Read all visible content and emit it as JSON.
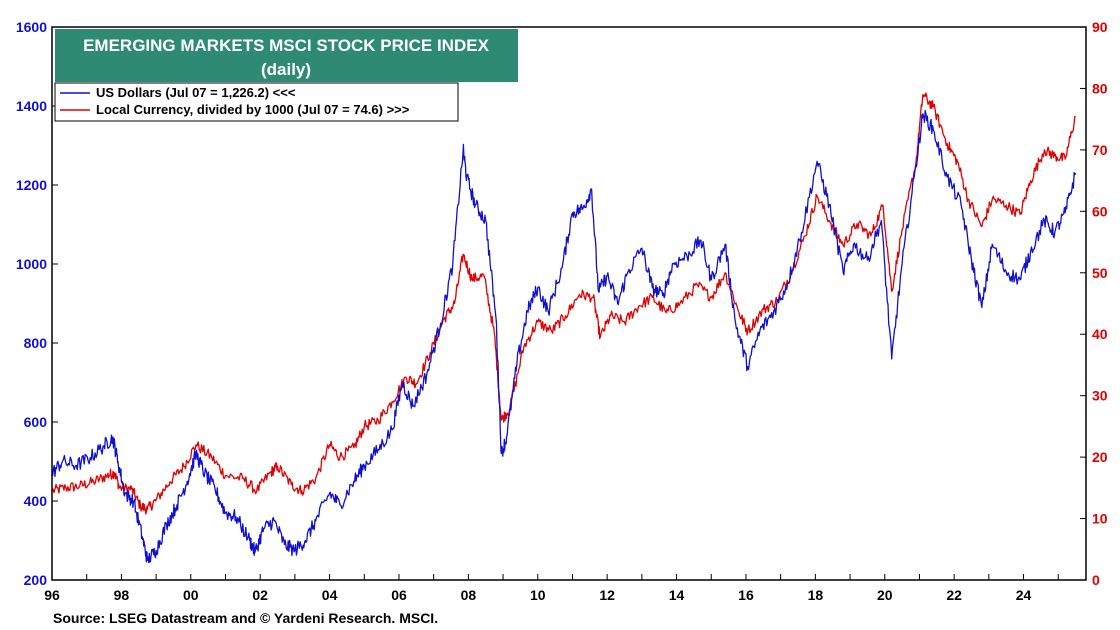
{
  "chart_data": {
    "type": "line",
    "title": "EMERGING MARKETS MSCI STOCK PRICE INDEX",
    "subtitle": "(daily)",
    "source": "Source: LSEG Datastream and © Yardeni Research. MSCI.",
    "x_axis": {
      "ticks": [
        "96",
        "98",
        "00",
        "02",
        "04",
        "06",
        "08",
        "10",
        "12",
        "14",
        "16",
        "18",
        "20",
        "22",
        "24"
      ],
      "tick_years": [
        1996,
        1998,
        2000,
        2002,
        2004,
        2006,
        2008,
        2010,
        2012,
        2014,
        2016,
        2018,
        2020,
        2022,
        2024
      ],
      "range": [
        1996.0,
        2025.8
      ]
    },
    "y_left": {
      "ylim": [
        200,
        1600
      ],
      "ticks": [
        "200",
        "400",
        "600",
        "800",
        "1000",
        "1200",
        "1400",
        "1600"
      ],
      "color": "#1010d0"
    },
    "y_right": {
      "ylim": [
        0,
        90
      ],
      "ticks": [
        "0",
        "10",
        "20",
        "30",
        "40",
        "50",
        "60",
        "70",
        "80",
        "90"
      ],
      "color": "#e00000"
    },
    "grid": false,
    "legend_position": "top-left",
    "series": [
      {
        "name": "US Dollars (Jul 07 = 1,226.2) <<<",
        "axis": "left",
        "color": "#1010d0",
        "points": [
          [
            1996.0,
            470
          ],
          [
            1996.3,
            500
          ],
          [
            1996.7,
            490
          ],
          [
            1997.1,
            510
          ],
          [
            1997.5,
            540
          ],
          [
            1997.75,
            560
          ],
          [
            1997.9,
            500
          ],
          [
            1998.1,
            420
          ],
          [
            1998.35,
            400
          ],
          [
            1998.6,
            310
          ],
          [
            1998.75,
            250
          ],
          [
            1999.0,
            275
          ],
          [
            1999.3,
            340
          ],
          [
            1999.6,
            390
          ],
          [
            1999.9,
            450
          ],
          [
            2000.15,
            520
          ],
          [
            2000.4,
            470
          ],
          [
            2000.7,
            430
          ],
          [
            2001.0,
            370
          ],
          [
            2001.3,
            360
          ],
          [
            2001.7,
            300
          ],
          [
            2001.85,
            270
          ],
          [
            2002.1,
            330
          ],
          [
            2002.4,
            350
          ],
          [
            2002.7,
            290
          ],
          [
            2003.0,
            275
          ],
          [
            2003.3,
            300
          ],
          [
            2003.6,
            350
          ],
          [
            2004.0,
            420
          ],
          [
            2004.3,
            390
          ],
          [
            2004.7,
            450
          ],
          [
            2005.0,
            490
          ],
          [
            2005.4,
            530
          ],
          [
            2005.8,
            580
          ],
          [
            2006.1,
            700
          ],
          [
            2006.4,
            640
          ],
          [
            2006.8,
            720
          ],
          [
            2007.2,
            850
          ],
          [
            2007.55,
            1000
          ],
          [
            2007.85,
            1290
          ],
          [
            2007.95,
            1220
          ],
          [
            2008.2,
            1150
          ],
          [
            2008.5,
            1110
          ],
          [
            2008.8,
            860
          ],
          [
            2008.95,
            520
          ],
          [
            2009.1,
            560
          ],
          [
            2009.4,
            750
          ],
          [
            2009.7,
            880
          ],
          [
            2010.0,
            940
          ],
          [
            2010.3,
            880
          ],
          [
            2010.7,
            990
          ],
          [
            2011.0,
            1130
          ],
          [
            2011.3,
            1140
          ],
          [
            2011.55,
            1190
          ],
          [
            2011.75,
            930
          ],
          [
            2012.0,
            970
          ],
          [
            2012.3,
            900
          ],
          [
            2012.6,
            980
          ],
          [
            2013.0,
            1040
          ],
          [
            2013.3,
            940
          ],
          [
            2013.6,
            920
          ],
          [
            2013.9,
            1000
          ],
          [
            2014.3,
            1020
          ],
          [
            2014.7,
            1060
          ],
          [
            2015.0,
            960
          ],
          [
            2015.4,
            1050
          ],
          [
            2015.7,
            850
          ],
          [
            2016.05,
            740
          ],
          [
            2016.4,
            830
          ],
          [
            2016.8,
            880
          ],
          [
            2017.2,
            950
          ],
          [
            2017.6,
            1080
          ],
          [
            2018.05,
            1260
          ],
          [
            2018.4,
            1150
          ],
          [
            2018.8,
            980
          ],
          [
            2019.1,
            1050
          ],
          [
            2019.5,
            1010
          ],
          [
            2019.9,
            1110
          ],
          [
            2020.2,
            760
          ],
          [
            2020.5,
            1000
          ],
          [
            2020.9,
            1250
          ],
          [
            2021.1,
            1380
          ],
          [
            2021.4,
            1340
          ],
          [
            2021.8,
            1220
          ],
          [
            2022.2,
            1150
          ],
          [
            2022.5,
            1010
          ],
          [
            2022.8,
            890
          ],
          [
            2023.1,
            1050
          ],
          [
            2023.5,
            980
          ],
          [
            2023.9,
            960
          ],
          [
            2024.2,
            1030
          ],
          [
            2024.6,
            1110
          ],
          [
            2024.9,
            1080
          ],
          [
            2025.2,
            1130
          ],
          [
            2025.5,
            1230
          ]
        ]
      },
      {
        "name": "Local Currency, divided by 1000 (Jul 07 = 74.6) >>>",
        "axis": "right",
        "color": "#e00000",
        "points": [
          [
            1996.0,
            14.5
          ],
          [
            1996.4,
            15.0
          ],
          [
            1996.8,
            15.3
          ],
          [
            1997.2,
            16.0
          ],
          [
            1997.6,
            17.0
          ],
          [
            1997.8,
            17.5
          ],
          [
            1997.95,
            15.0
          ],
          [
            1998.3,
            14.8
          ],
          [
            1998.55,
            12.0
          ],
          [
            1998.75,
            11.5
          ],
          [
            1999.0,
            13.0
          ],
          [
            1999.4,
            16.0
          ],
          [
            1999.8,
            18.5
          ],
          [
            2000.15,
            22.0
          ],
          [
            2000.6,
            20.0
          ],
          [
            2001.0,
            17.0
          ],
          [
            2001.5,
            16.5
          ],
          [
            2001.9,
            14.5
          ],
          [
            2002.3,
            17.5
          ],
          [
            2002.5,
            18.5
          ],
          [
            2002.9,
            15.5
          ],
          [
            2003.2,
            14.5
          ],
          [
            2003.6,
            16.5
          ],
          [
            2004.0,
            22.0
          ],
          [
            2004.3,
            20.0
          ],
          [
            2004.7,
            21.5
          ],
          [
            2005.0,
            25.0
          ],
          [
            2005.4,
            26.0
          ],
          [
            2005.8,
            29.0
          ],
          [
            2006.2,
            33.0
          ],
          [
            2006.5,
            32.0
          ],
          [
            2006.9,
            37.0
          ],
          [
            2007.3,
            42.5
          ],
          [
            2007.6,
            45.0
          ],
          [
            2007.85,
            53.0
          ],
          [
            2008.1,
            49.0
          ],
          [
            2008.45,
            49.5
          ],
          [
            2008.75,
            40.0
          ],
          [
            2008.95,
            26.0
          ],
          [
            2009.2,
            28.0
          ],
          [
            2009.6,
            38.0
          ],
          [
            2010.0,
            42.0
          ],
          [
            2010.4,
            40.5
          ],
          [
            2010.8,
            43.0
          ],
          [
            2011.2,
            46.5
          ],
          [
            2011.6,
            46.0
          ],
          [
            2011.8,
            39.5
          ],
          [
            2012.1,
            43.0
          ],
          [
            2012.5,
            42.0
          ],
          [
            2012.9,
            44.5
          ],
          [
            2013.3,
            46.0
          ],
          [
            2013.7,
            43.5
          ],
          [
            2014.1,
            45.0
          ],
          [
            2014.6,
            48.0
          ],
          [
            2015.0,
            46.0
          ],
          [
            2015.4,
            50.0
          ],
          [
            2015.8,
            43.5
          ],
          [
            2016.05,
            40.5
          ],
          [
            2016.5,
            44.0
          ],
          [
            2016.9,
            45.5
          ],
          [
            2017.3,
            50.0
          ],
          [
            2017.7,
            56.0
          ],
          [
            2018.05,
            62.5
          ],
          [
            2018.45,
            58.0
          ],
          [
            2018.8,
            54.5
          ],
          [
            2019.2,
            58.0
          ],
          [
            2019.6,
            56.0
          ],
          [
            2019.95,
            61.0
          ],
          [
            2020.2,
            47.0
          ],
          [
            2020.5,
            57.0
          ],
          [
            2020.9,
            68.0
          ],
          [
            2021.1,
            79.0
          ],
          [
            2021.4,
            77.0
          ],
          [
            2021.8,
            71.0
          ],
          [
            2022.1,
            68.0
          ],
          [
            2022.4,
            62.0
          ],
          [
            2022.8,
            57.5
          ],
          [
            2023.1,
            62.0
          ],
          [
            2023.5,
            61.0
          ],
          [
            2023.9,
            59.5
          ],
          [
            2024.2,
            65.0
          ],
          [
            2024.6,
            70.0
          ],
          [
            2024.9,
            69.0
          ],
          [
            2025.2,
            68.5
          ],
          [
            2025.5,
            75.5
          ]
        ]
      }
    ]
  }
}
